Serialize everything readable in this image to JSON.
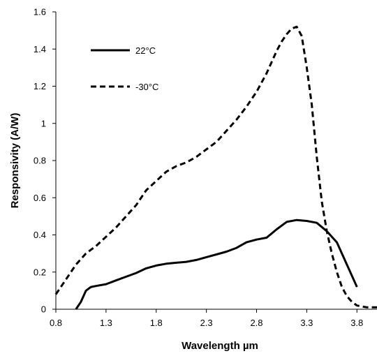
{
  "chart_data": {
    "type": "line",
    "title": "",
    "xlabel": "Wavelength µm",
    "ylabel": "Responsivity (A/W)",
    "xlim": [
      0.8,
      4.0
    ],
    "ylim": [
      0,
      1.6
    ],
    "x_ticks": [
      "0.8",
      "1.3",
      "1.8",
      "2.3",
      "2.8",
      "3.3",
      "3.8"
    ],
    "y_ticks": [
      "0",
      "0.2",
      "0.4",
      "0.6",
      "0.8",
      "1",
      "1.2",
      "1.4",
      "1.6"
    ],
    "grid": false,
    "legend_position": "top-left",
    "series": [
      {
        "name": "22°C",
        "style": "solid",
        "color": "#000000",
        "x": [
          1.0,
          1.05,
          1.1,
          1.15,
          1.2,
          1.3,
          1.4,
          1.5,
          1.6,
          1.7,
          1.8,
          1.9,
          2.0,
          2.1,
          2.2,
          2.3,
          2.4,
          2.5,
          2.6,
          2.7,
          2.8,
          2.9,
          3.0,
          3.1,
          3.2,
          3.3,
          3.4,
          3.5,
          3.6,
          3.7,
          3.8
        ],
        "y": [
          0.0,
          0.04,
          0.1,
          0.12,
          0.125,
          0.135,
          0.155,
          0.175,
          0.195,
          0.22,
          0.235,
          0.245,
          0.25,
          0.255,
          0.265,
          0.28,
          0.295,
          0.31,
          0.33,
          0.36,
          0.375,
          0.385,
          0.43,
          0.47,
          0.48,
          0.475,
          0.465,
          0.42,
          0.36,
          0.24,
          0.12
        ]
      },
      {
        "name": "-30°C",
        "style": "dashed",
        "color": "#000000",
        "x": [
          0.8,
          0.9,
          1.0,
          1.1,
          1.2,
          1.3,
          1.4,
          1.5,
          1.6,
          1.7,
          1.8,
          1.9,
          2.0,
          2.1,
          2.2,
          2.3,
          2.4,
          2.5,
          2.6,
          2.7,
          2.8,
          2.9,
          3.0,
          3.05,
          3.1,
          3.15,
          3.2,
          3.25,
          3.3,
          3.35,
          3.4,
          3.45,
          3.5,
          3.55,
          3.6,
          3.65,
          3.7,
          3.75,
          3.8,
          3.85,
          3.9,
          3.95,
          4.0
        ],
        "y": [
          0.08,
          0.16,
          0.24,
          0.3,
          0.34,
          0.39,
          0.44,
          0.5,
          0.56,
          0.64,
          0.69,
          0.74,
          0.77,
          0.79,
          0.82,
          0.86,
          0.9,
          0.96,
          1.02,
          1.09,
          1.17,
          1.27,
          1.39,
          1.44,
          1.48,
          1.51,
          1.52,
          1.47,
          1.3,
          1.1,
          0.82,
          0.58,
          0.42,
          0.3,
          0.2,
          0.12,
          0.07,
          0.04,
          0.02,
          0.015,
          0.01,
          0.01,
          0.01
        ]
      }
    ]
  }
}
